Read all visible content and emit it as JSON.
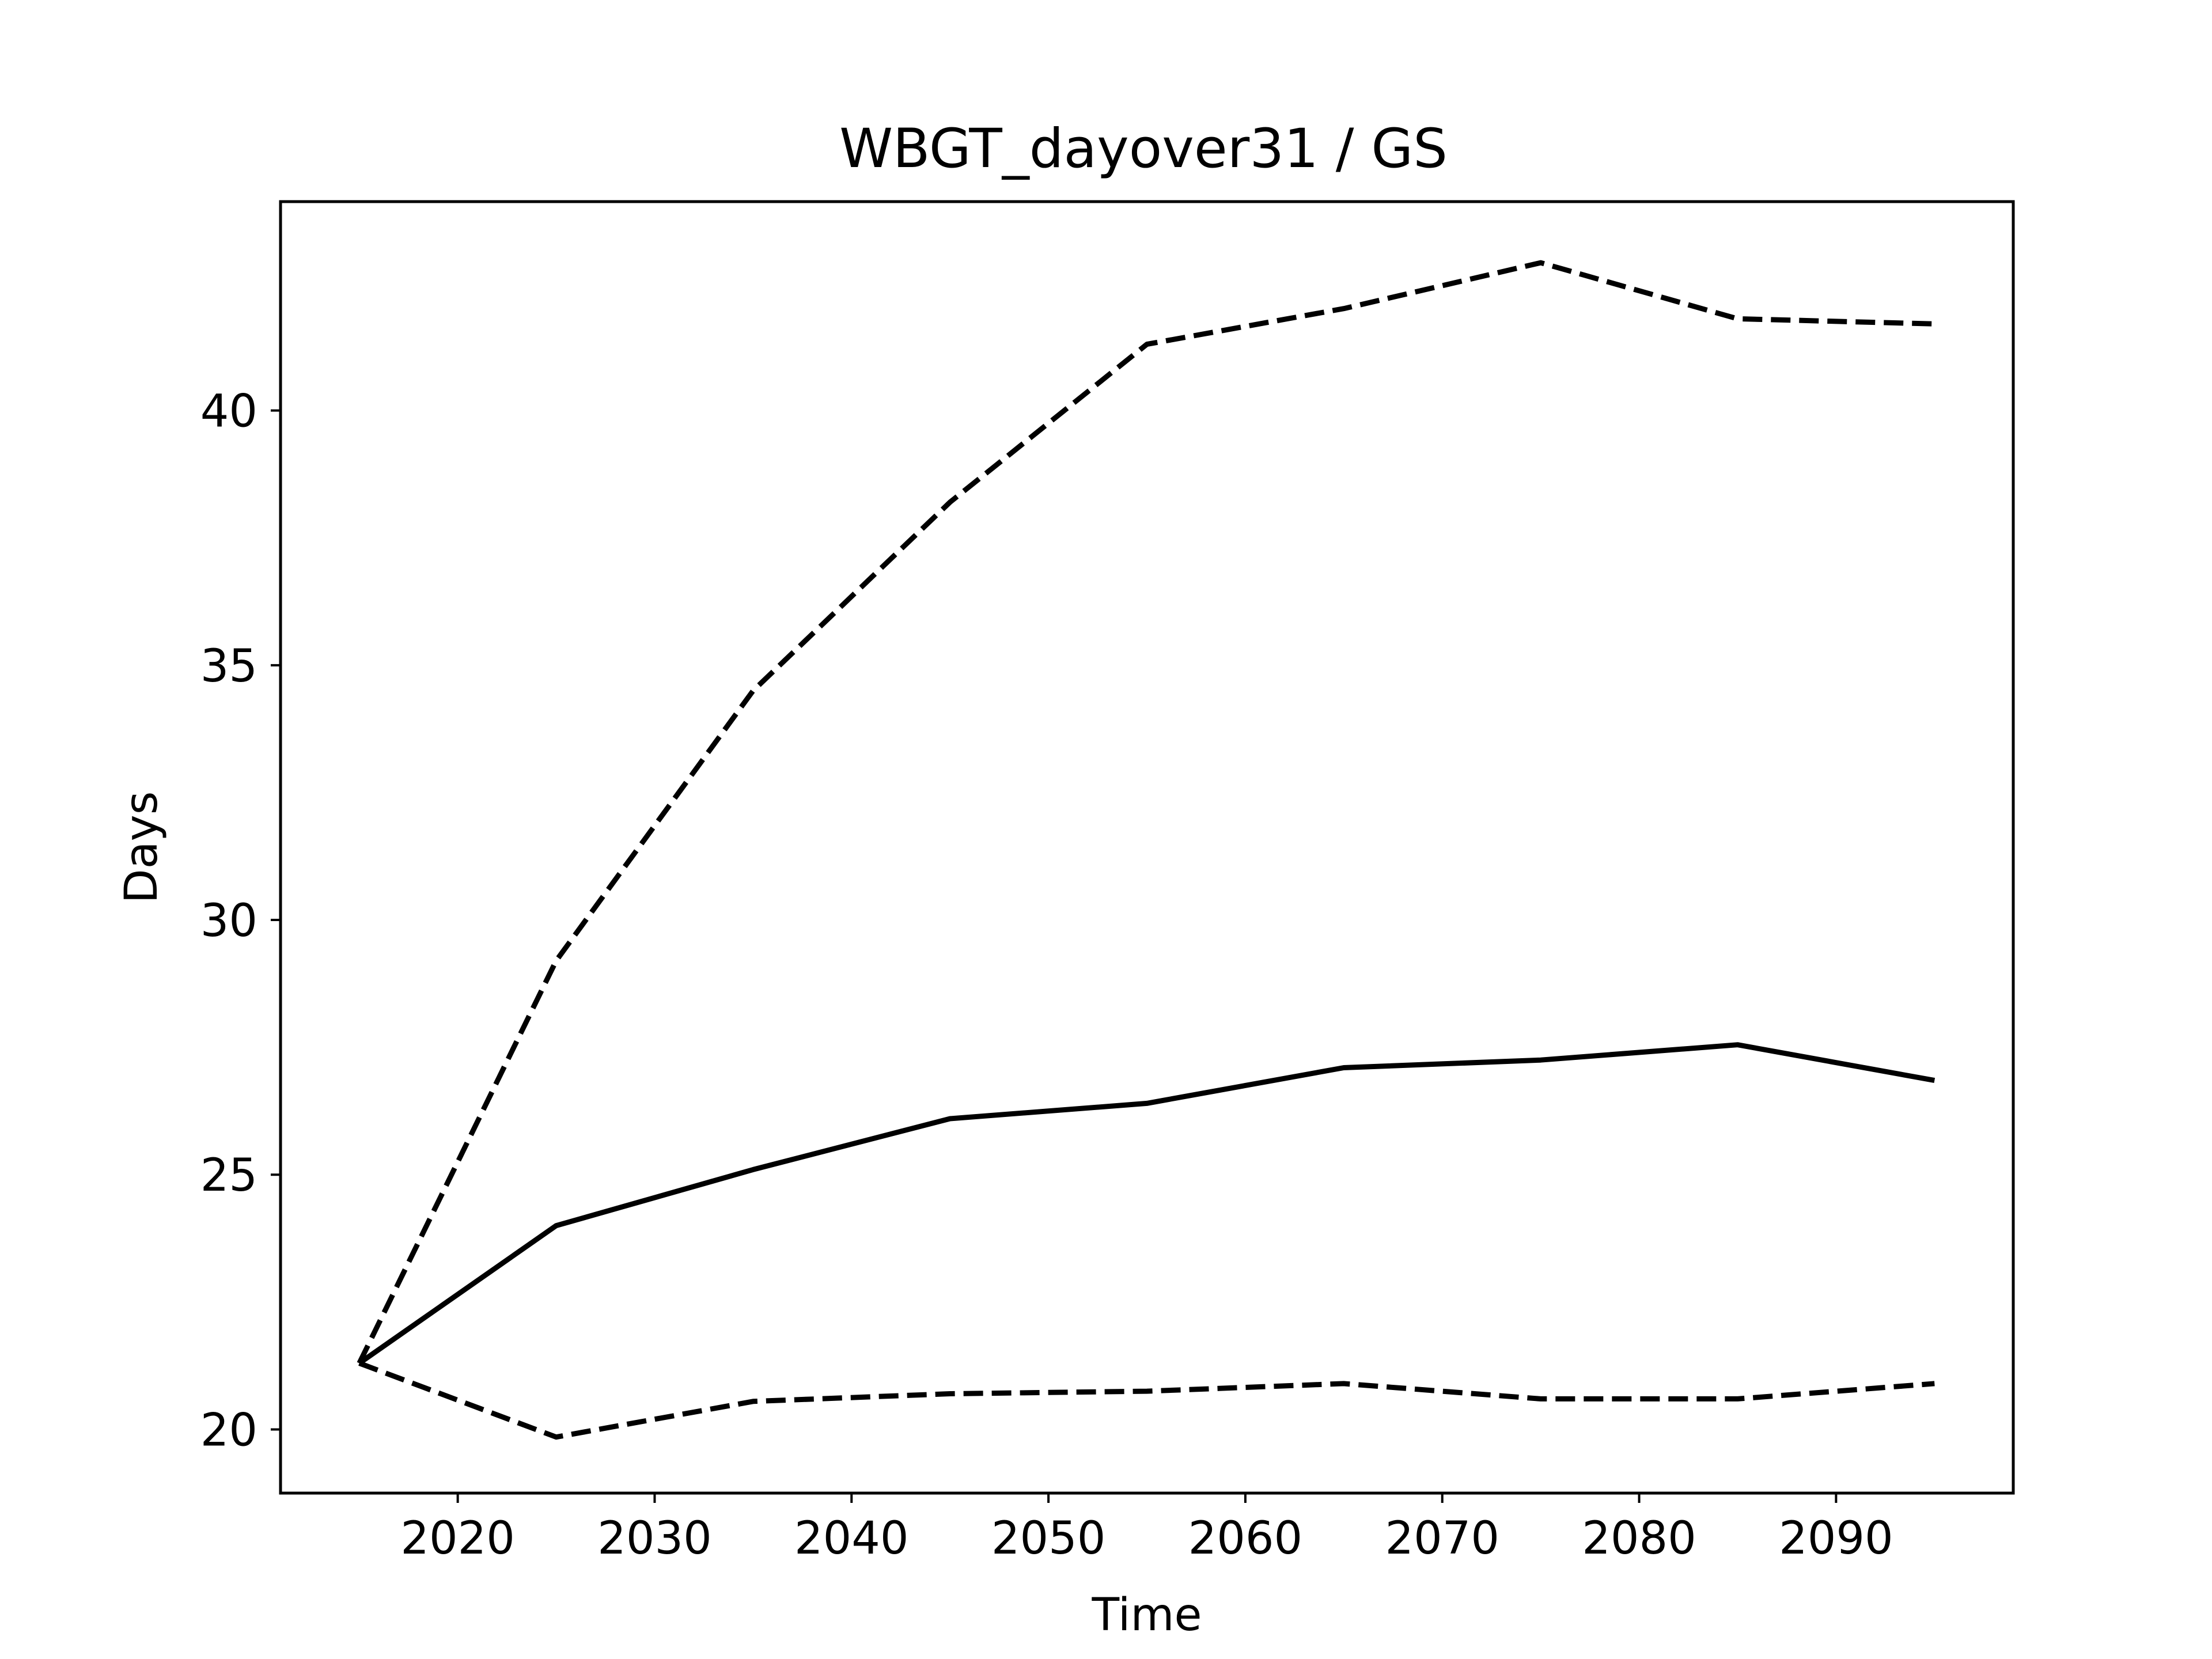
{
  "chart_data": {
    "type": "line",
    "title": "WBGT_dayover31 / GS",
    "xlabel": "Time",
    "ylabel": "Days",
    "xlim": [
      2011,
      2099
    ],
    "ylim": [
      18.75,
      44.1
    ],
    "x": [
      2015,
      2025,
      2035,
      2045,
      2055,
      2065,
      2075,
      2085,
      2095
    ],
    "xticks": [
      2020,
      2030,
      2040,
      2050,
      2060,
      2070,
      2080,
      2090
    ],
    "yticks": [
      20,
      25,
      30,
      35,
      40
    ],
    "grid": false,
    "legend": "none",
    "series": [
      {
        "style": "solid",
        "color": "#000000",
        "values": [
          21.3,
          24.0,
          25.1,
          26.1,
          26.4,
          27.1,
          27.25,
          27.55,
          26.85
        ]
      },
      {
        "style": "dashed",
        "color": "#000000",
        "values": [
          21.3,
          29.2,
          34.5,
          38.2,
          41.3,
          42.0,
          42.9,
          41.8,
          41.7
        ]
      },
      {
        "style": "dashed",
        "color": "#000000",
        "values": [
          21.3,
          19.85,
          20.55,
          20.7,
          20.75,
          20.9,
          20.6,
          20.6,
          20.9
        ]
      }
    ]
  }
}
